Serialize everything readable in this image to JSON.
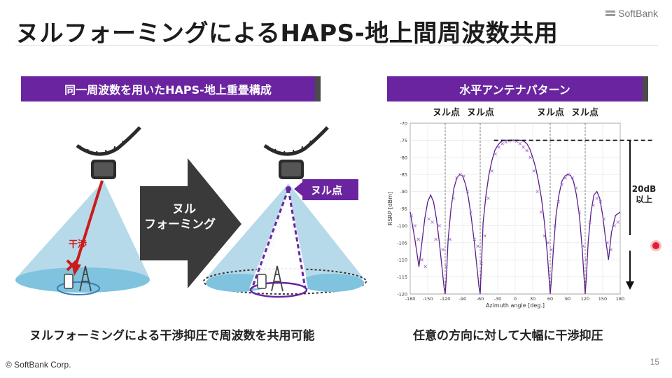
{
  "slide": {
    "title": "ヌルフォーミングによるHAPS-地上間周波数共用",
    "logo_text": "SoftBank",
    "copyright": "© SoftBank Corp.",
    "page_number": "15"
  },
  "left_panel": {
    "header": "同一周波数を用いたHAPS-地上重畳構成",
    "interference_label": "干渉",
    "arrow_label_line1": "ヌル",
    "arrow_label_line2": "フォーミング",
    "null_point_label": "ヌル点",
    "caption": "ヌルフォーミングによる干渉抑圧で周波数を共用可能"
  },
  "right_panel": {
    "header": "水平アンテナパターン",
    "null_labels": [
      "ヌル点",
      "ヌル点",
      "ヌル点",
      "ヌル点"
    ],
    "suppression_label_line1": "20dB",
    "suppression_label_line2": "以上",
    "caption": "任意の方向に対して大幅に干渉抑圧"
  },
  "colors": {
    "accent_purple": "#6a24a0",
    "beam_blue": "#a9d4e6",
    "interference_red": "#cc1a1a",
    "dark_arrow": "#3a3a3a"
  },
  "chart_data": {
    "type": "line",
    "xlabel": "Azimuth angle [deg.]",
    "ylabel": "RSRP [dBm]",
    "xlim": [
      -180,
      180
    ],
    "ylim": [
      -120,
      -70
    ],
    "xticks": [
      -180,
      -150,
      -120,
      -90,
      -60,
      -30,
      0,
      30,
      60,
      90,
      120,
      150,
      180
    ],
    "yticks": [
      -70,
      -75,
      -80,
      -85,
      -90,
      -95,
      -100,
      -105,
      -110,
      -115,
      -120
    ],
    "null_angles": [
      -120,
      -60,
      60,
      120
    ],
    "reference_level": -75,
    "grid": true,
    "series": [
      {
        "style": "line",
        "x": [
          -180,
          -172,
          -165,
          -160,
          -155,
          -150,
          -145,
          -140,
          -135,
          -130,
          -125,
          -122,
          -120,
          -118,
          -115,
          -110,
          -105,
          -100,
          -95,
          -90,
          -85,
          -80,
          -75,
          -70,
          -65,
          -62,
          -60,
          -58,
          -55,
          -50,
          -45,
          -40,
          -35,
          -30,
          -25,
          -20,
          -15,
          -10,
          -5,
          0,
          5,
          10,
          15,
          20,
          25,
          30,
          35,
          40,
          45,
          50,
          55,
          58,
          60,
          62,
          65,
          70,
          75,
          80,
          85,
          90,
          95,
          100,
          105,
          110,
          115,
          118,
          120,
          122,
          125,
          130,
          135,
          140,
          145,
          150,
          155,
          160,
          165,
          172,
          180
        ],
        "y": [
          -96,
          -104,
          -112,
          -105,
          -98,
          -93,
          -91,
          -93,
          -98,
          -105,
          -113,
          -118,
          -120,
          -115,
          -104,
          -95,
          -89,
          -86,
          -85,
          -85.5,
          -88,
          -92,
          -98,
          -105,
          -113,
          -118,
          -120,
          -112,
          -99,
          -91,
          -85,
          -81,
          -78,
          -76.5,
          -75.5,
          -75,
          -75,
          -75,
          -75,
          -75,
          -75,
          -75,
          -75.3,
          -76,
          -77.5,
          -80,
          -83,
          -87,
          -92,
          -99,
          -108,
          -115,
          -120,
          -116,
          -108,
          -97,
          -91,
          -87,
          -85.5,
          -85,
          -85.3,
          -87,
          -91,
          -97,
          -107,
          -115,
          -120,
          -115,
          -105,
          -96,
          -91,
          -90,
          -92,
          -97,
          -104,
          -110,
          -102,
          -97,
          -96
        ]
      },
      {
        "style": "markers",
        "x": [
          -178,
          -172,
          -166,
          -160,
          -154,
          -148,
          -142,
          -136,
          -130,
          -124,
          -118,
          -112,
          -106,
          -100,
          -94,
          -88,
          -82,
          -76,
          -70,
          -64,
          -58,
          -52,
          -46,
          -40,
          -34,
          -28,
          -22,
          -16,
          -10,
          -4,
          2,
          8,
          14,
          20,
          26,
          32,
          38,
          44,
          50,
          56,
          62,
          68,
          74,
          80,
          86,
          92,
          98,
          104,
          110,
          116,
          122,
          128,
          134,
          140,
          146,
          152,
          158,
          164,
          170,
          176
        ],
        "y": [
          -97,
          -100,
          -104,
          -110,
          -112,
          -98,
          -99,
          -104,
          -100,
          -107,
          -112,
          -104,
          -92,
          -86,
          -85,
          -85.5,
          -90,
          -96,
          -104,
          -106,
          -111,
          -103,
          -92,
          -84,
          -79,
          -77,
          -76,
          -75.5,
          -75.2,
          -75,
          -75.3,
          -76,
          -77,
          -78,
          -80,
          -84,
          -90,
          -96,
          -103,
          -105,
          -107,
          -100,
          -93,
          -88,
          -86,
          -85,
          -86,
          -89,
          -96,
          -106,
          -110,
          -99,
          -94,
          -92,
          -93,
          -98,
          -105,
          -107,
          -100,
          -99
        ]
      }
    ]
  }
}
